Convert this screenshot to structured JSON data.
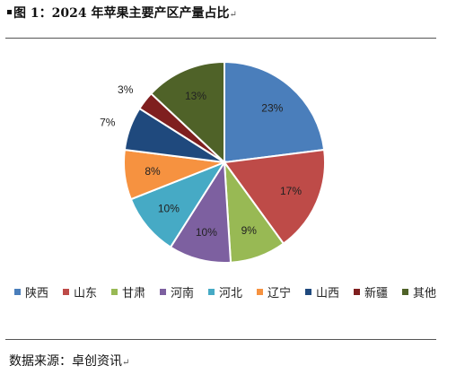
{
  "title": "图 1：2024 年苹果主要产区产量占比",
  "paragraph_mark": "↵",
  "source": "数据来源：卓创资讯",
  "chart_data": {
    "type": "pie",
    "title": "",
    "slices": [
      {
        "name": "陕西",
        "value": 23,
        "label": "23%",
        "color": "#4a7ebb"
      },
      {
        "name": "山东",
        "value": 17,
        "label": "17%",
        "color": "#be4b48"
      },
      {
        "name": "甘肃",
        "value": 9,
        "label": "9%",
        "color": "#98b954"
      },
      {
        "name": "河南",
        "value": 10,
        "label": "10%",
        "color": "#7d60a0"
      },
      {
        "name": "河北",
        "value": 10,
        "label": "10%",
        "color": "#46aac5"
      },
      {
        "name": "辽宁",
        "value": 8,
        "label": "8%",
        "color": "#f69240"
      },
      {
        "name": "山西",
        "value": 7,
        "label": "7%",
        "color": "#1f497d"
      },
      {
        "name": "新疆",
        "value": 3,
        "label": "3%",
        "color": "#7f1f1f"
      },
      {
        "name": "其他",
        "value": 13,
        "label": "13%",
        "color": "#4f6228"
      }
    ],
    "legend_placement": "bottom"
  }
}
